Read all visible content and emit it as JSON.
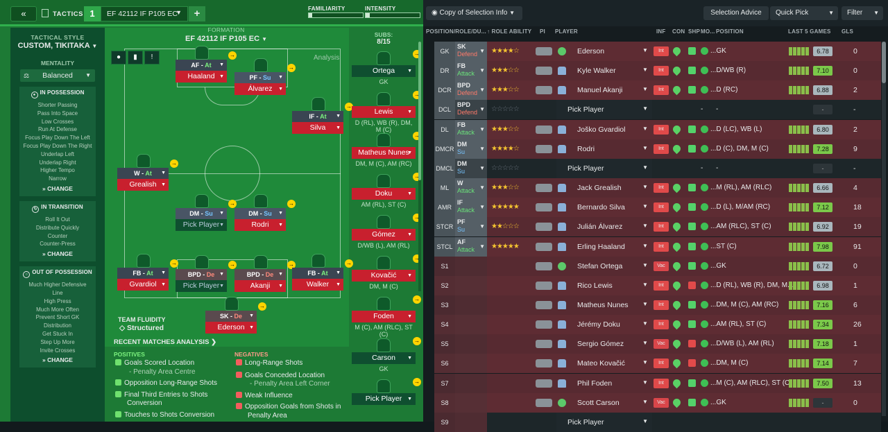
{
  "topbar": {
    "back_label": "«",
    "tactics_label": "TACTICS",
    "tactic_number": "1",
    "tactic_name": "EF 42112 IF P105 EC",
    "add_label": "+",
    "familiarity_label": "FAMILIARITY",
    "intensity_label": "INTENSITY",
    "familiarity_level": 0.06,
    "intensity_level": 0.08
  },
  "sidebar": {
    "style_heading": "TACTICAL STYLE",
    "style_value": "CUSTOM, TIKITAKA",
    "mentality_heading": "MENTALITY",
    "mentality_value": "Balanced",
    "in_possession": {
      "title": "IN POSSESSION",
      "items": [
        "Shorter Passing",
        "Pass Into Space",
        "Low Crosses",
        "Run At Defense",
        "Focus Play Down The Left",
        "Focus Play Down The Right",
        "Underlap Left",
        "Underlap Right",
        "Higher Tempo",
        "Narrow"
      ],
      "change": "CHANGE"
    },
    "in_transition": {
      "title": "IN TRANSITION",
      "items": [
        "Roll It Out",
        "Distribute Quickly",
        "Counter",
        "Counter-Press"
      ],
      "change": "CHANGE"
    },
    "out_possession": {
      "title": "OUT OF POSSESSION",
      "items": [
        "Much Higher Defensive",
        "Line",
        "High Press",
        "Much More Often",
        "Prevent Short GK",
        "Distribution",
        "Get Stuck In",
        "Step Up More",
        "Invite Crosses"
      ],
      "change": "CHANGE"
    }
  },
  "formation": {
    "heading": "FORMATION",
    "name": "EF 42112 IF P105 EC",
    "analysis_label": "Analysis",
    "team_fluidity_label": "TEAM FLUIDITY",
    "team_fluidity_value": "Structured"
  },
  "players": [
    {
      "pos": "AF",
      "duty": "At",
      "name": "Haaland"
    },
    {
      "pos": "PF",
      "duty": "Su",
      "name": "Álvarez"
    },
    {
      "pos": "IF",
      "duty": "At",
      "name": "Silva"
    },
    {
      "pos": "W",
      "duty": "At",
      "name": "Grealish"
    },
    {
      "pos": "DM",
      "duty": "Su",
      "name": "Pick Player"
    },
    {
      "pos": "DM",
      "duty": "Su",
      "name": "Rodri"
    },
    {
      "pos": "FB",
      "duty": "At",
      "name": "Gvardiol"
    },
    {
      "pos": "BPD",
      "duty": "De",
      "name": "Pick Player"
    },
    {
      "pos": "BPD",
      "duty": "De",
      "name": "Akanji"
    },
    {
      "pos": "FB",
      "duty": "At",
      "name": "Walker"
    },
    {
      "pos": "SK",
      "duty": "De",
      "name": "Ederson"
    }
  ],
  "subs": {
    "heading": "SUBS:",
    "count": "8/15",
    "list": [
      {
        "name": "Ortega",
        "pos": "GK"
      },
      {
        "name": "Lewis",
        "pos": "D (RL), WB (R), DM, M (C)"
      },
      {
        "name": "Matheus Nunes",
        "pos": "DM, M (C), AM (RC)"
      },
      {
        "name": "Doku",
        "pos": "AM (RL), ST (C)"
      },
      {
        "name": "Gómez",
        "pos": "D/WB (L), AM (RL)"
      },
      {
        "name": "Kovačić",
        "pos": "DM, M (C)"
      },
      {
        "name": "Foden",
        "pos": "M (C), AM (RLC), ST (C)"
      },
      {
        "name": "Carson",
        "pos": "GK"
      },
      {
        "name": "Pick Player",
        "pos": ""
      }
    ]
  },
  "analysis": {
    "recent_label": "RECENT MATCHES ANALYSIS",
    "positives_label": "POSITIVES",
    "negatives_label": "NEGATIVES",
    "positives": [
      "Goals Scored Location",
      "- Penalty Area Centre",
      "Opposition Long-Range Shots",
      "Final Third Entries to Shots",
      "Conversion",
      "Touches to Shots Conversion"
    ],
    "negatives": [
      "Long-Range Shots",
      "Goals Conceded Location",
      "- Penalty Area Left Corner",
      "Weak Influence",
      "Opposition Goals from Shots in",
      "Penalty Area"
    ]
  },
  "right_top": {
    "copy_label": "Copy of Selection Info",
    "advice_label": "Selection Advice",
    "quick_pick_label": "Quick Pick",
    "filter_label": "Filter"
  },
  "columns": [
    "POSITION/ROLE/DU...",
    "ROLE ABILITY",
    "PI",
    "PLAYER",
    "INF",
    "CON",
    "SHP",
    "MO...",
    "POSITION",
    "LAST 5 GAMES",
    "GLS"
  ],
  "rows": [
    {
      "slot": "GK",
      "role": "SK",
      "duty": "Defend",
      "stars": "★★★★☆",
      "player": "Ederson",
      "inf": "Int",
      "pos": "...GK",
      "rating": "6.78",
      "gls": "0",
      "gk": true
    },
    {
      "slot": "DR",
      "role": "FB",
      "duty": "Attack",
      "stars": "★★★☆☆",
      "player": "Kyle Walker",
      "inf": "Int",
      "pos": "...D/WB (R)",
      "rating": "7.10",
      "gls": "0"
    },
    {
      "slot": "DCR",
      "role": "BPD",
      "duty": "Defend",
      "stars": "★★★☆☆",
      "player": "Manuel Akanji",
      "inf": "Int",
      "pos": "...D (RC)",
      "rating": "6.88",
      "gls": "2"
    },
    {
      "slot": "DCL",
      "role": "BPD",
      "duty": "Defend",
      "stars": "☆☆☆☆☆",
      "player": "Pick Player",
      "inf": "",
      "pos": "-",
      "rating": "-",
      "gls": "-",
      "empty": true
    },
    {
      "slot": "DL",
      "role": "FB",
      "duty": "Attack",
      "stars": "★★★☆☆",
      "player": "Joško Gvardiol",
      "inf": "Int",
      "pos": "...D (LC), WB (L)",
      "rating": "6.80",
      "gls": "2"
    },
    {
      "slot": "DMCR",
      "role": "DM",
      "duty": "Su",
      "stars": "★★★★☆",
      "player": "Rodri",
      "inf": "Int",
      "pos": "...D (C), DM, M (C)",
      "rating": "7.28",
      "gls": "9"
    },
    {
      "slot": "DMCL",
      "role": "DM",
      "duty": "Su",
      "stars": "☆☆☆☆☆",
      "player": "Pick Player",
      "inf": "",
      "pos": "-",
      "rating": "-",
      "gls": "-",
      "empty": true
    },
    {
      "slot": "ML",
      "role": "W",
      "duty": "Attack",
      "stars": "★★★☆☆",
      "player": "Jack Grealish",
      "inf": "Int",
      "pos": "...M (RL), AM (RLC)",
      "rating": "6.66",
      "gls": "4"
    },
    {
      "slot": "AMR",
      "role": "IF",
      "duty": "Attack",
      "stars": "★★★★★",
      "player": "Bernardo Silva",
      "inf": "Int",
      "pos": "...D (L), M/AM (RC)",
      "rating": "7.12",
      "gls": "18"
    },
    {
      "slot": "STCR",
      "role": "PF",
      "duty": "Su",
      "stars": "★★☆☆☆",
      "player": "Julián Álvarez",
      "inf": "Int",
      "pos": "...AM (RLC), ST (C)",
      "rating": "6.92",
      "gls": "19"
    },
    {
      "slot": "STCL",
      "role": "AF",
      "duty": "Attack",
      "stars": "★★★★★",
      "player": "Erling Haaland",
      "inf": "Int",
      "pos": "...ST (C)",
      "rating": "7.98",
      "gls": "91"
    },
    {
      "slot": "S1",
      "role": "",
      "duty": "",
      "stars": "",
      "player": "Stefan Ortega",
      "inf": "Vac",
      "pos": "...GK",
      "rating": "6.72",
      "gls": "0",
      "gk": true
    },
    {
      "slot": "S2",
      "role": "",
      "duty": "",
      "stars": "",
      "player": "Rico Lewis",
      "inf": "Int",
      "pos": "...D (RL), WB (R), DM, M...",
      "rating": "6.98",
      "gls": "1"
    },
    {
      "slot": "S3",
      "role": "",
      "duty": "",
      "stars": "",
      "player": "Matheus Nunes",
      "inf": "Int",
      "pos": "...DM, M (C), AM (RC)",
      "rating": "7.16",
      "gls": "6"
    },
    {
      "slot": "S4",
      "role": "",
      "duty": "",
      "stars": "",
      "player": "Jérémy Doku",
      "inf": "Int",
      "pos": "...AM (RL), ST (C)",
      "rating": "7.34",
      "gls": "26"
    },
    {
      "slot": "S5",
      "role": "",
      "duty": "",
      "stars": "",
      "player": "Sergio Gómez",
      "inf": "Vac",
      "pos": "...D/WB (L), AM (RL)",
      "rating": "7.18",
      "gls": "1"
    },
    {
      "slot": "S6",
      "role": "",
      "duty": "",
      "stars": "",
      "player": "Mateo Kovačić",
      "inf": "Int",
      "pos": "...DM, M (C)",
      "rating": "7.14",
      "gls": "7"
    },
    {
      "slot": "S7",
      "role": "",
      "duty": "",
      "stars": "",
      "player": "Phil Foden",
      "inf": "Int",
      "pos": "...M (C), AM (RLC), ST (C)",
      "rating": "7.50",
      "gls": "13"
    },
    {
      "slot": "S8",
      "role": "",
      "duty": "",
      "stars": "",
      "player": "Scott Carson",
      "inf": "Vac",
      "pos": "...GK",
      "rating": "-",
      "gls": "0",
      "gk": true
    },
    {
      "slot": "S9",
      "role": "",
      "duty": "",
      "stars": "",
      "player": "Pick Player",
      "inf": "",
      "pos": "",
      "rating": "",
      "gls": "",
      "empty": true
    }
  ]
}
